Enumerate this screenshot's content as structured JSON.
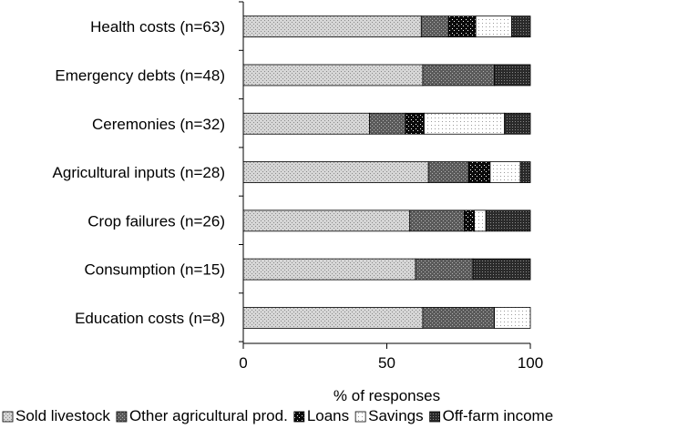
{
  "chart_data": {
    "type": "bar",
    "orientation": "horizontal",
    "stacked": true,
    "categories": [
      "Health costs (n=63)",
      "Emergency debts (n=48)",
      "Ceremonies (n=32)",
      "Agricultural inputs (n=28)",
      "Crop failures (n=26)",
      "Consumption (n=15)",
      "Education costs (n=8)"
    ],
    "series": [
      {
        "name": "Sold livestock",
        "values": [
          62,
          62.5,
          44,
          64.5,
          58,
          60,
          62.5
        ]
      },
      {
        "name": "Other agricultural prod.",
        "values": [
          9.5,
          25,
          12.5,
          14,
          19,
          20,
          25
        ]
      },
      {
        "name": "Loans",
        "values": [
          9.5,
          0,
          6.5,
          7.5,
          3.5,
          0,
          0
        ]
      },
      {
        "name": "Savings",
        "values": [
          12.5,
          0,
          28,
          10.5,
          4,
          0,
          12.5
        ]
      },
      {
        "name": "Off-farm income",
        "values": [
          6.5,
          12.5,
          9,
          3.5,
          15.5,
          20,
          0
        ]
      }
    ],
    "xlabel": "% of responses",
    "ylabel": "",
    "xlim": [
      0,
      100
    ],
    "xticks": [
      "0",
      "50",
      "100"
    ],
    "grid": false,
    "legend": "bottom",
    "colors": {
      "Sold livestock": "#d8d8d8",
      "Other agricultural prod.": "#6e6e6e",
      "Loans": "#111111",
      "Savings": "#f4f4f4",
      "Off-farm income": "#3a3a3a"
    }
  }
}
